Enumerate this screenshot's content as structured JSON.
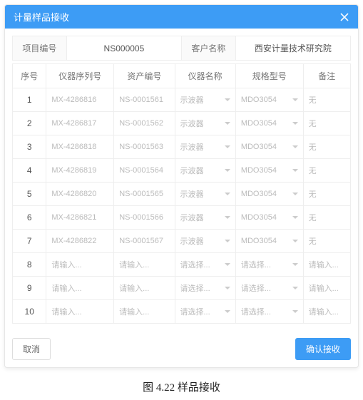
{
  "colors": {
    "header_bg": "#3d9cf5",
    "header_text": "#ffffff",
    "border": "#eeeeee",
    "muted_text": "#bbbbbb",
    "primary_btn_bg": "#3d9cf5",
    "primary_btn_text": "#ffffff"
  },
  "modal": {
    "title": "计量样品接收",
    "close_name": "close-icon"
  },
  "info": {
    "project_label": "项目编号",
    "project_value": "NS000005",
    "customer_label": "客户名称",
    "customer_value": "西安计量技术研究院"
  },
  "columns": {
    "seq": "序号",
    "serial": "仪器序列号",
    "asset": "资产编号",
    "name": "仪器名称",
    "spec": "规格型号",
    "remark": "备注"
  },
  "placeholders": {
    "text": "请输入...",
    "select": "请选择..."
  },
  "rows": [
    {
      "seq": "1",
      "serial": "MX-4286816",
      "asset": "NS-0001561",
      "name": "示波器",
      "spec": "MDO3054",
      "remark": "无"
    },
    {
      "seq": "2",
      "serial": "MX-4286817",
      "asset": "NS-0001562",
      "name": "示波器",
      "spec": "MDO3054",
      "remark": "无"
    },
    {
      "seq": "3",
      "serial": "MX-4286818",
      "asset": "NS-0001563",
      "name": "示波器",
      "spec": "MDO3054",
      "remark": "无"
    },
    {
      "seq": "4",
      "serial": "MX-4286819",
      "asset": "NS-0001564",
      "name": "示波器",
      "spec": "MDO3054",
      "remark": "无"
    },
    {
      "seq": "5",
      "serial": "MX-4286820",
      "asset": "NS-0001565",
      "name": "示波器",
      "spec": "MDO3054",
      "remark": "无"
    },
    {
      "seq": "6",
      "serial": "MX-4286821",
      "asset": "NS-0001566",
      "name": "示波器",
      "spec": "MDO3054",
      "remark": "无"
    },
    {
      "seq": "7",
      "serial": "MX-4286822",
      "asset": "NS-0001567",
      "name": "示波器",
      "spec": "MDO3054",
      "remark": "无"
    },
    {
      "seq": "8",
      "serial": "",
      "asset": "",
      "name": "",
      "spec": "",
      "remark": ""
    },
    {
      "seq": "9",
      "serial": "",
      "asset": "",
      "name": "",
      "spec": "",
      "remark": ""
    },
    {
      "seq": "10",
      "serial": "",
      "asset": "",
      "name": "",
      "spec": "",
      "remark": ""
    }
  ],
  "footer": {
    "cancel": "取消",
    "confirm": "确认接收"
  },
  "caption": "图 4.22 样品接收"
}
